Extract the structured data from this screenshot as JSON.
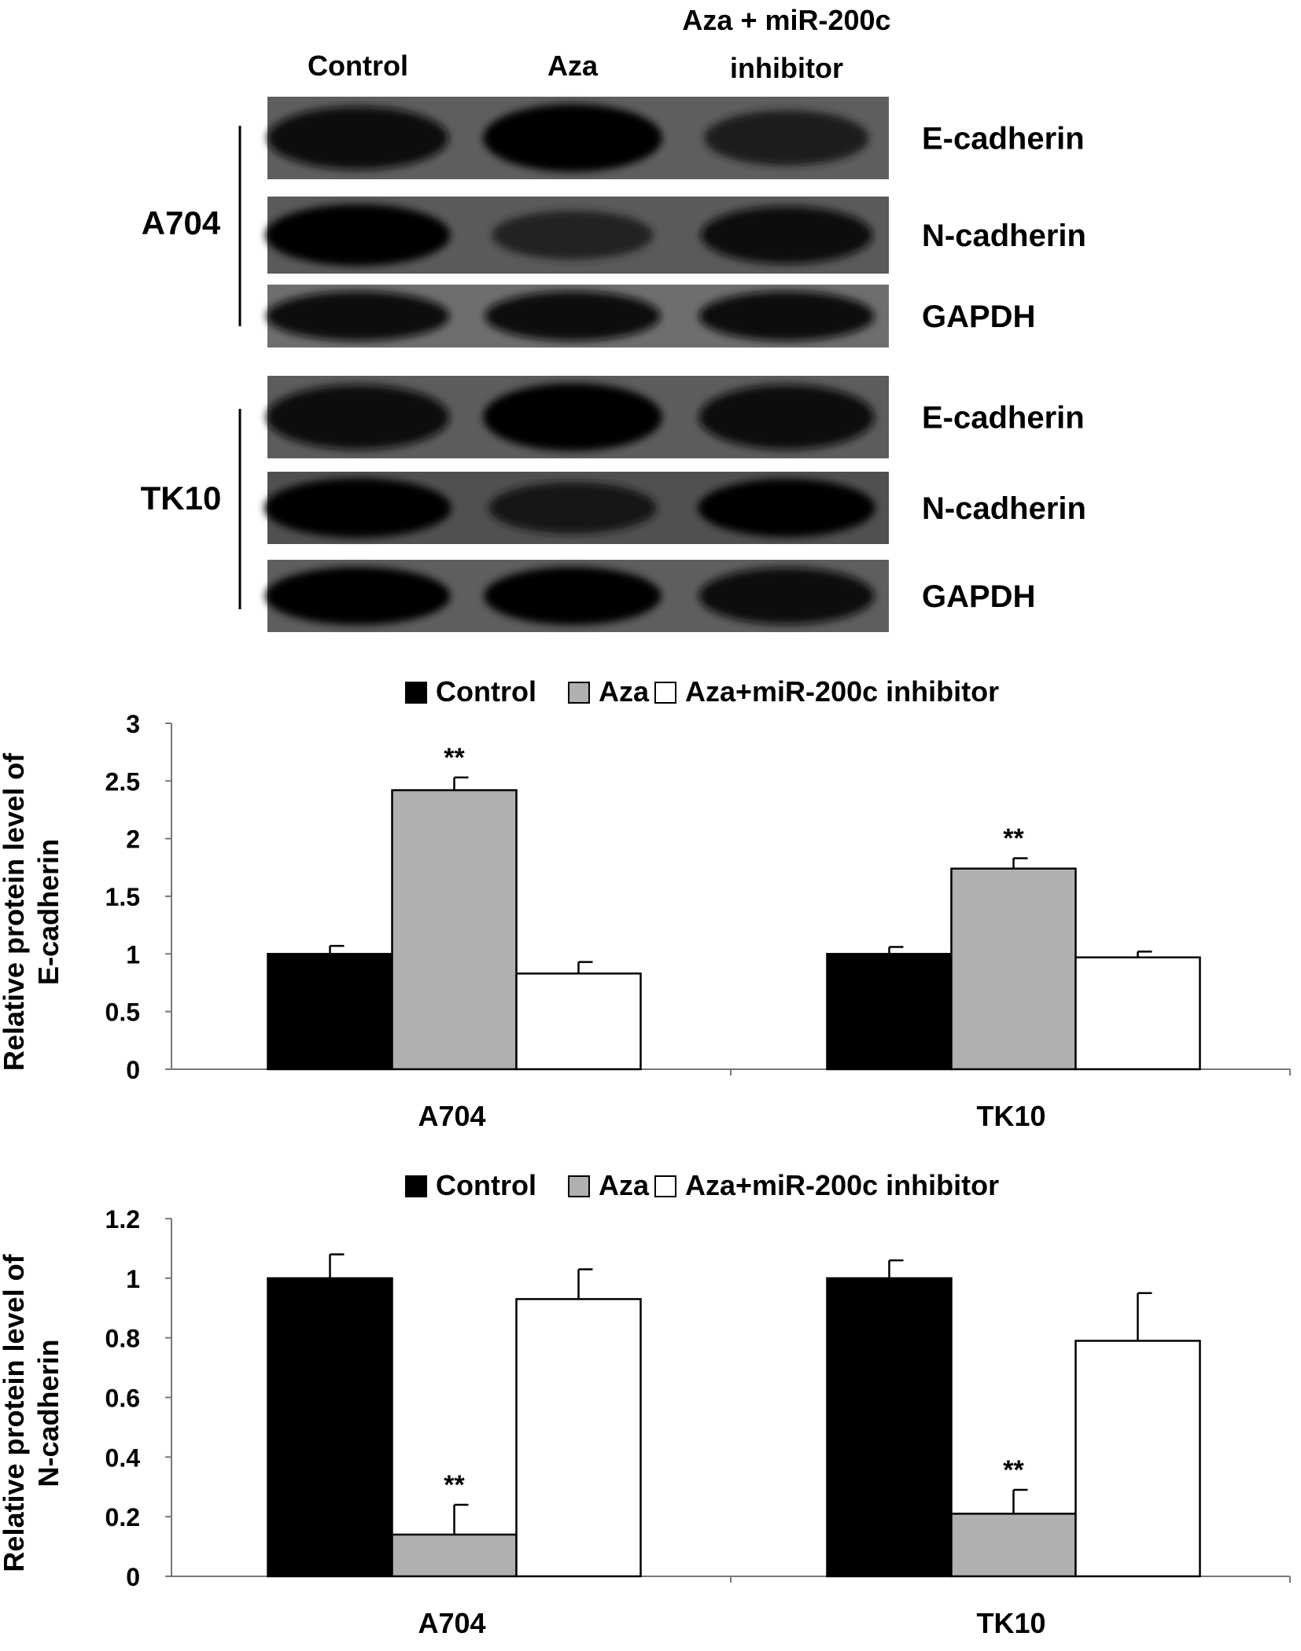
{
  "blot": {
    "lane_headers": [
      {
        "lines": [
          "Control"
        ]
      },
      {
        "lines": [
          "Aza"
        ]
      },
      {
        "lines": [
          "Aza + miR-200c",
          "inhibitor"
        ]
      }
    ],
    "groups": [
      {
        "label": "A704",
        "rows": [
          {
            "protein": "E-cadherin",
            "band_intensity": [
              0.8,
              0.95,
              0.55
            ],
            "background": "#5e5e5e"
          },
          {
            "protein": "N-cadherin",
            "band_intensity": [
              0.9,
              0.45,
              0.75
            ],
            "background": "#5a5a5a"
          },
          {
            "protein": "GAPDH",
            "band_intensity": [
              0.85,
              0.85,
              0.85
            ],
            "background": "#6e6e6e"
          }
        ]
      },
      {
        "label": "TK10",
        "rows": [
          {
            "protein": "E-cadherin",
            "band_intensity": [
              0.85,
              0.95,
              0.85
            ],
            "background": "#5c5c5c"
          },
          {
            "protein": "N-cadherin",
            "band_intensity": [
              0.95,
              0.65,
              0.9
            ],
            "background": "#505050"
          },
          {
            "protein": "GAPDH",
            "band_intensity": [
              0.9,
              0.9,
              0.85
            ],
            "background": "#5e5e5e"
          }
        ]
      }
    ]
  },
  "chart_data": [
    {
      "type": "bar",
      "legend": [
        "Control",
        "Aza",
        "Aza+miR-200c inhibitor"
      ],
      "legend_position": "top",
      "ylabel": [
        "Relative protein level of",
        "E-cadherin"
      ],
      "xlabel": "",
      "ylim": [
        0,
        3
      ],
      "yticks": [
        "0",
        "0.5",
        "1",
        "1.5",
        "2",
        "2.5",
        "3"
      ],
      "categories": [
        "A704",
        "TK10"
      ],
      "series": [
        {
          "name": "Control",
          "color": "#000000",
          "values": [
            1.0,
            1.0
          ],
          "errors": [
            0.07,
            0.06
          ]
        },
        {
          "name": "Aza",
          "color": "#b0b0b0",
          "values": [
            2.42,
            1.74
          ],
          "errors": [
            0.11,
            0.09
          ]
        },
        {
          "name": "Aza+miR-200c inhibitor",
          "color": "#ffffff",
          "values": [
            0.83,
            0.97
          ],
          "errors": [
            0.1,
            0.05
          ]
        }
      ],
      "annotations": [
        {
          "category": "A704",
          "series": "Aza",
          "text": "**"
        },
        {
          "category": "TK10",
          "series": "Aza",
          "text": "**"
        }
      ],
      "grid": false
    },
    {
      "type": "bar",
      "legend": [
        "Control",
        "Aza",
        "Aza+miR-200c inhibitor"
      ],
      "legend_position": "top",
      "ylabel": [
        "Relative protein level of",
        "N-cadherin"
      ],
      "xlabel": "",
      "ylim": [
        0,
        1.2
      ],
      "yticks": [
        "0",
        "0.2",
        "0.4",
        "0.6",
        "0.8",
        "1",
        "1.2"
      ],
      "categories": [
        "A704",
        "TK10"
      ],
      "series": [
        {
          "name": "Control",
          "color": "#000000",
          "values": [
            1.0,
            1.0
          ],
          "errors": [
            0.08,
            0.06
          ]
        },
        {
          "name": "Aza",
          "color": "#b0b0b0",
          "values": [
            0.14,
            0.21
          ],
          "errors": [
            0.1,
            0.08
          ]
        },
        {
          "name": "Aza+miR-200c inhibitor",
          "color": "#ffffff",
          "values": [
            0.93,
            0.79
          ],
          "errors": [
            0.1,
            0.16
          ]
        }
      ],
      "annotations": [
        {
          "category": "A704",
          "series": "Aza",
          "text": "**"
        },
        {
          "category": "TK10",
          "series": "Aza",
          "text": "**"
        }
      ],
      "grid": false
    }
  ]
}
